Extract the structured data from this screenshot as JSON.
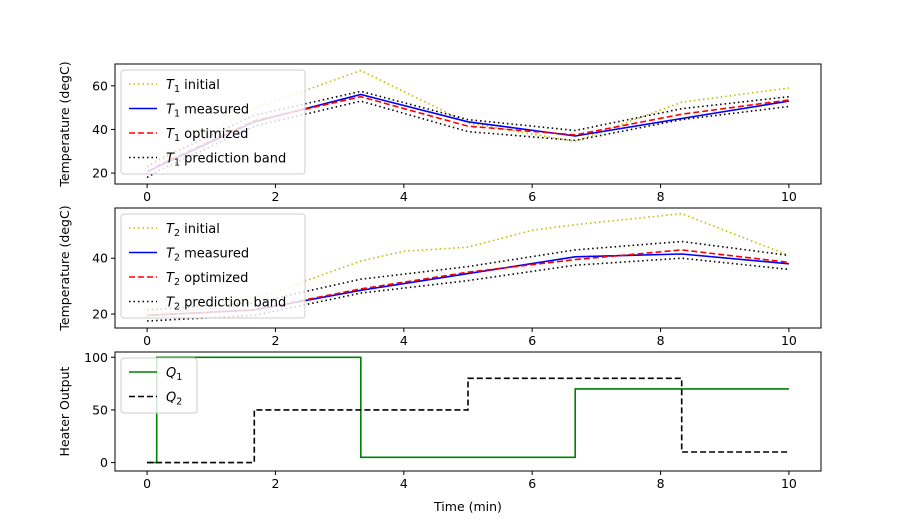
{
  "chart_data": [
    {
      "type": "line",
      "ylabel": "Temperature (degC)",
      "xlim": [
        -0.5,
        10.5
      ],
      "ylim": [
        15,
        70
      ],
      "xticks": [
        0,
        2,
        4,
        6,
        8,
        10
      ],
      "yticks": [
        20,
        40,
        60
      ],
      "legend": "upper-left",
      "series": [
        {
          "name": "initial",
          "sub": "1",
          "style": "dotted",
          "color": "#bfbf00",
          "x": [
            0,
            0.17,
            1.67,
            3.33,
            5.0,
            6.67,
            8.33,
            10
          ],
          "y": [
            22.5,
            25,
            49.5,
            67,
            43,
            34.5,
            52.5,
            59
          ]
        },
        {
          "name": "measured",
          "sub": "1",
          "style": "solid",
          "color": "#0000ff",
          "x": [
            0,
            0.17,
            1.67,
            3.33,
            5.0,
            6.67,
            8.33,
            10
          ],
          "y": [
            20.5,
            23,
            43.5,
            56,
            43.5,
            37,
            45,
            53
          ]
        },
        {
          "name": "optimized",
          "sub": "1",
          "style": "dashed",
          "color": "#ff0000",
          "x": [
            0,
            0.17,
            1.67,
            3.33,
            5.0,
            6.67,
            8.33,
            10
          ],
          "y": [
            20.5,
            23.5,
            44,
            55,
            41.5,
            37.5,
            47,
            53.5
          ]
        },
        {
          "name": "prediction band",
          "sub": "1",
          "style": "dotted",
          "color": "#000000",
          "x": [
            0,
            0.17,
            1.67,
            3.33,
            5.0,
            6.67,
            8.33,
            10
          ],
          "y": [
            23,
            26,
            46.5,
            57.5,
            44.5,
            39.5,
            49.5,
            55
          ]
        },
        {
          "name": "",
          "sub": "1",
          "style": "dotted",
          "color": "#000000",
          "legend": false,
          "x": [
            0,
            0.17,
            1.67,
            3.33,
            5.0,
            6.67,
            8.33,
            10
          ],
          "y": [
            18,
            21,
            41.5,
            53,
            39,
            35,
            44.5,
            50.5
          ]
        }
      ]
    },
    {
      "type": "line",
      "ylabel": "Temperature (degC)",
      "xlim": [
        -0.5,
        10.5
      ],
      "ylim": [
        15,
        58
      ],
      "xticks": [
        0,
        2,
        4,
        6,
        8,
        10
      ],
      "yticks": [
        20,
        40
      ],
      "legend": "upper-left",
      "series": [
        {
          "name": "initial",
          "sub": "2",
          "style": "dotted",
          "color": "#bfbf00",
          "x": [
            0,
            1.0,
            2.0,
            3.33,
            4.0,
            5.0,
            6.0,
            6.67,
            8.33,
            10
          ],
          "y": [
            20,
            22,
            28,
            39,
            42.5,
            44,
            50,
            52,
            56,
            41
          ]
        },
        {
          "name": "measured",
          "sub": "2",
          "style": "solid",
          "color": "#0000ff",
          "x": [
            0,
            1.67,
            3.33,
            5.0,
            6.67,
            8.33,
            10
          ],
          "y": [
            19.5,
            21.5,
            28.5,
            34.5,
            40.5,
            41.5,
            38
          ]
        },
        {
          "name": "optimized",
          "sub": "2",
          "style": "dashed",
          "color": "#ff0000",
          "x": [
            0,
            1.67,
            3.33,
            5.0,
            6.67,
            8.33,
            10
          ],
          "y": [
            19.5,
            21.5,
            29,
            35,
            39.5,
            43,
            38.5
          ]
        },
        {
          "name": "prediction band",
          "sub": "2",
          "style": "dotted",
          "color": "#000000",
          "x": [
            0,
            1.67,
            3.33,
            5.0,
            6.67,
            8.33,
            10
          ],
          "y": [
            21.5,
            24,
            32.5,
            37,
            43,
            46,
            41
          ]
        },
        {
          "name": "",
          "sub": "2",
          "style": "dotted",
          "color": "#000000",
          "legend": false,
          "x": [
            0,
            1.67,
            3.33,
            5.0,
            6.67,
            8.33,
            10
          ],
          "y": [
            17.5,
            19.5,
            27.5,
            32,
            37.5,
            40,
            36
          ]
        }
      ]
    },
    {
      "type": "line",
      "ylabel": "Heater Output",
      "xlabel": "Time (min)",
      "xlim": [
        -0.5,
        10.5
      ],
      "ylim": [
        -8,
        105
      ],
      "xticks": [
        0,
        2,
        4,
        6,
        8,
        10
      ],
      "yticks": [
        0,
        50,
        100
      ],
      "legend": "upper-left",
      "series": [
        {
          "name": "Q",
          "sub": "1",
          "style": "solid",
          "color": "#008000",
          "x": [
            0,
            0.15,
            0.15,
            3.33,
            3.33,
            6.67,
            6.67,
            10
          ],
          "y": [
            0,
            0,
            100,
            100,
            5,
            5,
            70,
            70
          ]
        },
        {
          "name": "Q",
          "sub": "2",
          "style": "dashed",
          "color": "#000000",
          "x": [
            0,
            1.67,
            1.67,
            5.0,
            5.0,
            8.33,
            8.33,
            10
          ],
          "y": [
            0,
            0,
            50,
            50,
            80,
            80,
            10,
            10
          ]
        }
      ]
    }
  ]
}
